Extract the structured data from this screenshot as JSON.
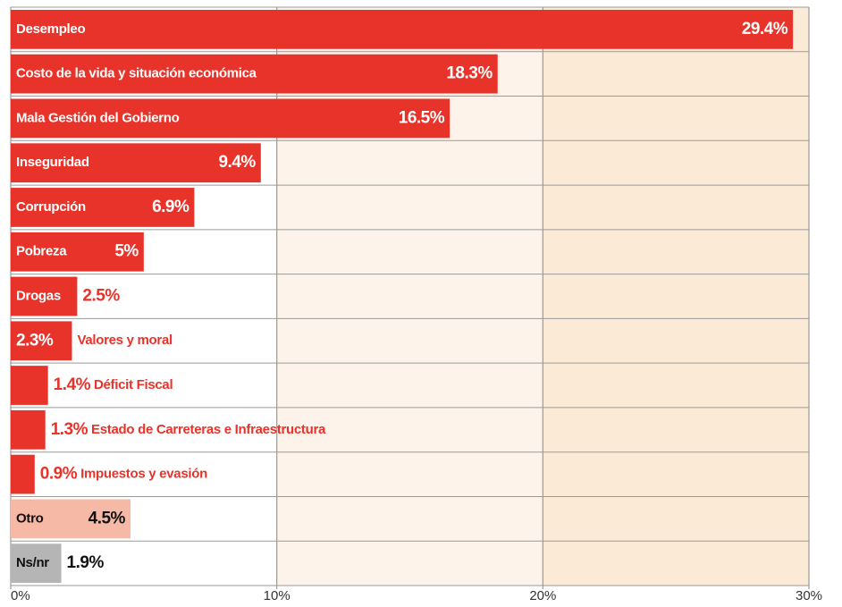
{
  "chart_data": {
    "type": "bar",
    "orientation": "horizontal",
    "categories": [
      "Desempleo",
      "Costo de la vida y situación económica",
      "Mala Gestión del Gobierno",
      "Inseguridad",
      "Corrupción",
      "Pobreza",
      "Drogas",
      "Valores y moral",
      "Déficit Fiscal",
      "Estado de Carreteras e Infraestructura",
      "Impuestos y evasión",
      "Otro",
      "Ns/nr"
    ],
    "values": [
      29.4,
      18.3,
      16.5,
      9.4,
      6.9,
      5,
      2.5,
      2.3,
      1.4,
      1.3,
      0.9,
      4.5,
      1.9
    ],
    "value_labels": [
      "29.4%",
      "18.3%",
      "16.5%",
      "9.4%",
      "6.9%",
      "5%",
      "2.5%",
      "2.3%",
      "1.4%",
      "1.3%",
      "0.9%",
      "4.5%",
      "1.9%"
    ],
    "color": "#e8332a",
    "colors": [
      "#e8332a",
      "#e8332a",
      "#e8332a",
      "#e8332a",
      "#e8332a",
      "#e8332a",
      "#e8332a",
      "#e8332a",
      "#e8332a",
      "#e8332a",
      "#e8332a",
      "#f5b9a6",
      "#b5b5b5"
    ],
    "xlim": [
      0,
      30
    ],
    "xticks": [
      {
        "value": 0,
        "label": "0%"
      },
      {
        "value": 10,
        "label": "10%"
      },
      {
        "value": 20,
        "label": "20%"
      },
      {
        "value": 30,
        "label": "30%"
      }
    ],
    "grid": true
  }
}
